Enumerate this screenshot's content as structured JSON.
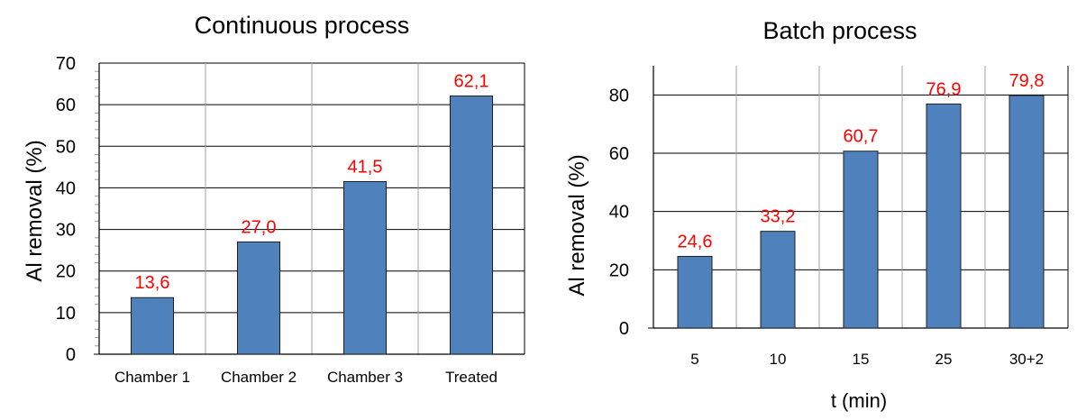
{
  "colors": {
    "bar_fill": "#4f81bd",
    "bar_stroke": "#1f1f1f",
    "label_color": "#ff0000",
    "grid": "#000000",
    "minor_grid": "#a0a0a0"
  },
  "chart_data": [
    {
      "type": "bar",
      "title": "Continuous process",
      "categories": [
        "Chamber 1",
        "Chamber 2",
        "Chamber 3",
        "Treated"
      ],
      "values": [
        13.6,
        27.0,
        41.5,
        62.1
      ],
      "data_labels": [
        "13,6",
        "27,0",
        "41,5",
        "62,1"
      ],
      "xlabel": "",
      "ylabel": "Al removal (%)",
      "ylim": [
        0,
        70
      ],
      "yticks": [
        0,
        10,
        20,
        30,
        40,
        50,
        60,
        70
      ],
      "grid": true,
      "legend": "none"
    },
    {
      "type": "bar",
      "title": "Batch process",
      "categories": [
        "5",
        "10",
        "15",
        "25",
        "30+2"
      ],
      "values": [
        24.6,
        33.2,
        60.7,
        76.9,
        79.8
      ],
      "data_labels": [
        "24,6",
        "33,2",
        "60,7",
        "76,9",
        "79,8"
      ],
      "xlabel": "t (min)",
      "ylabel": "Al removal (%)",
      "ylim": [
        0,
        90
      ],
      "yticks": [
        0,
        20,
        40,
        60,
        80
      ],
      "grid": true,
      "legend": "none"
    }
  ]
}
